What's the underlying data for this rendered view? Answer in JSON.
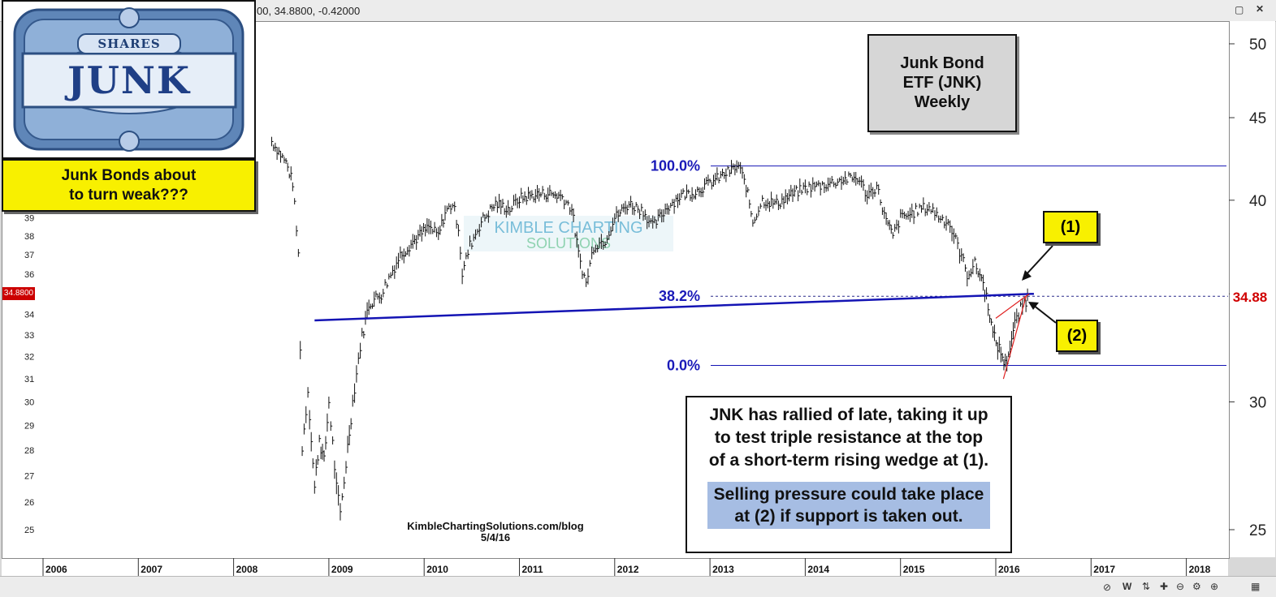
{
  "window": {
    "header_values": "00, 34.8800, -0.42000"
  },
  "logo": {
    "label_top": "SHARES",
    "label_main": "JUNK"
  },
  "title_box": {
    "line1": "Junk Bond",
    "line2": "ETF (JNK)",
    "line3": "Weekly"
  },
  "question_box": {
    "line1": "Junk Bonds about",
    "line2": "to turn weak???"
  },
  "markers": {
    "m1": "(1)",
    "m2": "(2)"
  },
  "note": {
    "line1": "JNK has rallied of late, taking it up",
    "line2": "to test triple resistance at the top",
    "line3": "of a short-term rising wedge at (1).",
    "highlight1": "Selling pressure could take place",
    "highlight2": "at (2) if support is taken out."
  },
  "credit": {
    "site": "KimbleChartingSolutions.com/blog",
    "date": "5/4/16"
  },
  "watermark": {
    "line1": "KIMBLE CHARTING",
    "line2": "SOLUTIONS"
  },
  "price": {
    "current_right": "34.88",
    "current_left": "34.8800"
  },
  "colors": {
    "fib_blue": "#1a1ab8",
    "trendline_blue": "#1414b4",
    "callout_yellow": "#f8f000",
    "highlight_blue": "#a6bde3",
    "price_red": "#d00000",
    "wedge_red": "#e02020"
  },
  "chart_data": {
    "type": "line",
    "title": "Junk Bond ETF (JNK) Weekly",
    "y_scale": "log",
    "ylim": [
      24,
      51
    ],
    "xlim": [
      2006.0,
      2018.4
    ],
    "right_axis_ticks": [
      "50",
      "45",
      "40",
      "35",
      "30",
      "25"
    ],
    "left_axis_ticks": [
      "39",
      "38",
      "37",
      "36",
      "35",
      "34",
      "33",
      "32",
      "31",
      "30",
      "29",
      "28",
      "27",
      "26",
      "25"
    ],
    "x_tick_labels": [
      "2006",
      "2007",
      "2008",
      "2009",
      "2010",
      "2011",
      "2012",
      "2013",
      "2014",
      "2015",
      "2016",
      "2017",
      "2018"
    ],
    "series": [
      {
        "values": [
          [
            2008.4,
            43.5
          ],
          [
            2008.55,
            42.2
          ],
          [
            2008.62,
            41.0
          ],
          [
            2008.68,
            37.0
          ],
          [
            2008.72,
            28.0
          ],
          [
            2008.78,
            30.5
          ],
          [
            2008.85,
            26.5
          ],
          [
            2008.9,
            28.5
          ],
          [
            2008.95,
            27.5
          ],
          [
            2009.0,
            30.0
          ],
          [
            2009.08,
            26.5
          ],
          [
            2009.12,
            25.5
          ],
          [
            2009.18,
            27.5
          ],
          [
            2009.25,
            30.0
          ],
          [
            2009.33,
            32.5
          ],
          [
            2009.42,
            34.5
          ],
          [
            2009.55,
            35.0
          ],
          [
            2009.65,
            36.0
          ],
          [
            2009.75,
            37.0
          ],
          [
            2009.9,
            37.8
          ],
          [
            2010.05,
            38.5
          ],
          [
            2010.15,
            38.0
          ],
          [
            2010.22,
            39.3
          ],
          [
            2010.3,
            39.8
          ],
          [
            2010.36,
            38.5
          ],
          [
            2010.4,
            36.0
          ],
          [
            2010.48,
            37.5
          ],
          [
            2010.6,
            38.8
          ],
          [
            2010.75,
            39.8
          ],
          [
            2010.9,
            39.5
          ],
          [
            2011.0,
            40.1
          ],
          [
            2011.15,
            40.3
          ],
          [
            2011.3,
            40.4
          ],
          [
            2011.45,
            40.2
          ],
          [
            2011.55,
            39.5
          ],
          [
            2011.62,
            37.0
          ],
          [
            2011.7,
            35.5
          ],
          [
            2011.78,
            37.5
          ],
          [
            2011.9,
            37.8
          ],
          [
            2012.0,
            39.0
          ],
          [
            2012.15,
            39.8
          ],
          [
            2012.3,
            39.4
          ],
          [
            2012.4,
            38.5
          ],
          [
            2012.55,
            39.6
          ],
          [
            2012.7,
            40.3
          ],
          [
            2012.85,
            40.5
          ],
          [
            2013.0,
            41.0
          ],
          [
            2013.15,
            41.5
          ],
          [
            2013.3,
            42.0
          ],
          [
            2013.38,
            40.8
          ],
          [
            2013.45,
            38.8
          ],
          [
            2013.55,
            40.0
          ],
          [
            2013.7,
            39.8
          ],
          [
            2013.85,
            40.3
          ],
          [
            2014.0,
            40.7
          ],
          [
            2014.2,
            40.9
          ],
          [
            2014.4,
            41.2
          ],
          [
            2014.55,
            41.3
          ],
          [
            2014.65,
            40.3
          ],
          [
            2014.75,
            40.8
          ],
          [
            2014.85,
            38.8
          ],
          [
            2014.92,
            38.0
          ],
          [
            2015.0,
            39.0
          ],
          [
            2015.1,
            39.2
          ],
          [
            2015.2,
            39.5
          ],
          [
            2015.3,
            39.6
          ],
          [
            2015.42,
            39.0
          ],
          [
            2015.5,
            38.8
          ],
          [
            2015.6,
            37.5
          ],
          [
            2015.7,
            36.0
          ],
          [
            2015.78,
            36.5
          ],
          [
            2015.85,
            35.8
          ],
          [
            2015.92,
            34.5
          ],
          [
            2015.97,
            33.0
          ],
          [
            2016.02,
            32.5
          ],
          [
            2016.07,
            32.0
          ],
          [
            2016.1,
            31.6
          ],
          [
            2016.15,
            32.5
          ],
          [
            2016.2,
            33.5
          ],
          [
            2016.26,
            34.2
          ],
          [
            2016.3,
            34.6
          ],
          [
            2016.35,
            34.88
          ]
        ]
      }
    ],
    "annotations": [
      {
        "label": "100.0%",
        "y": 42.0
      },
      {
        "label": "38.2%",
        "y": 34.88
      },
      {
        "label": "0.0%",
        "y": 31.6
      }
    ],
    "support_line": {
      "from": [
        2008.85,
        33.7
      ],
      "to": [
        2016.4,
        35.0
      ]
    }
  }
}
